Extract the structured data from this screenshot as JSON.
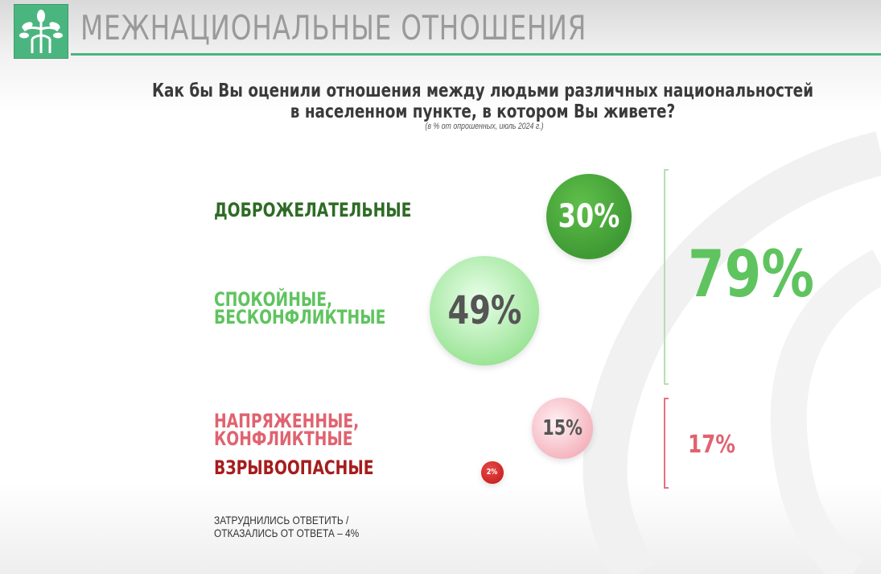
{
  "header": {
    "title": "МЕЖНАЦИОНАЛЬНЫЕ ОТНОШЕНИЯ"
  },
  "chart_data": {
    "type": "bubble",
    "title_line1": "Как бы Вы оценили отношения между людьми различных национальностей",
    "title_line2": "в населенном пункте, в котором Вы живете?",
    "subtitle": "(в % от опрошенных, июль 2024 г.)",
    "categories": [
      "ДОБРОЖЕЛАТЕЛЬНЫЕ",
      "СПОКОЙНЫЕ, БЕСКОНФЛИКТНЫЕ",
      "НАПРЯЖЕННЫЕ, КОНФЛИКТНЫЕ",
      "ВЗРЫВООПАСНЫЕ"
    ],
    "label_lines": [
      [
        "ДОБРОЖЕЛАТЕЛЬНЫЕ"
      ],
      [
        "СПОКОЙНЫЕ,",
        "БЕСКОНФЛИКТНЫЕ"
      ],
      [
        "НАПРЯЖЕННЫЕ,",
        "КОНФЛИКТНЫЕ"
      ],
      [
        "ВЗРЫВООПАСНЫЕ"
      ]
    ],
    "values": [
      30,
      49,
      15,
      2
    ],
    "value_labels": [
      "30%",
      "49%",
      "15%",
      "2%"
    ],
    "colors": [
      "#3f9a34",
      "#8fe08a",
      "#f2a5b1",
      "#c91f1f"
    ],
    "label_colors": [
      "#2e6b25",
      "#5fc45f",
      "#e0636f",
      "#a61c1c"
    ],
    "groups": [
      {
        "label": "79%",
        "value": 79,
        "color": "#5fc45f"
      },
      {
        "label": "17%",
        "value": 17,
        "color": "#e0636f"
      }
    ],
    "note_line1": "ЗАТРУДНИЛИСЬ ОТВЕТИТЬ /",
    "note_line2": "ОТКАЗАЛИСЬ ОТ ОТВЕТА – 4%"
  }
}
